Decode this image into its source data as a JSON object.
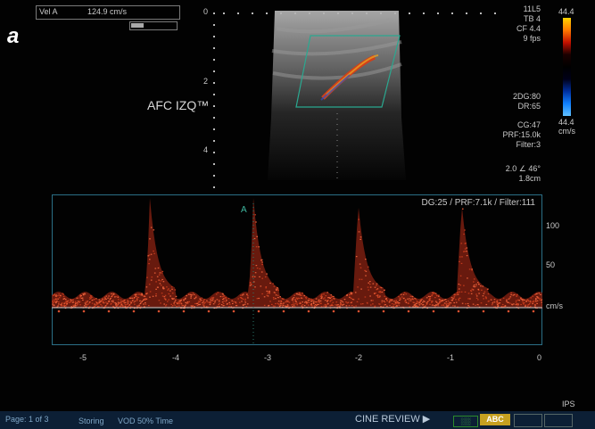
{
  "header": {
    "vel_label": "Vel A",
    "vel_value": "124.9  cm/s",
    "figure_letter": "a",
    "study_label": "AFC IZQ™"
  },
  "depth_scale": {
    "labels": [
      "0",
      "2",
      "4"
    ]
  },
  "params_right": {
    "lines_top": [
      "11L5",
      "TB 4",
      "CF 4.4",
      "9 fps"
    ],
    "colorbar_max": "44.4",
    "colorbar_min": "44.4",
    "colorbar_unit": "cm/s",
    "lines_mid": [
      "2DG:80",
      "DR:65"
    ],
    "lines_low": [
      "CG:47",
      "PRF:15.0k",
      "Filter:3"
    ],
    "angle_lines": [
      "2.0  ∠ 46°",
      "1.8cm"
    ],
    "colorbar_colors": [
      "#ffd400",
      "#ff7a00",
      "#c41000",
      "#1a0000",
      "#000000",
      "#000018",
      "#0030a0",
      "#1080ff",
      "#60c0ff"
    ]
  },
  "doppler": {
    "params": "DG:25 /   PRF:7.1k   / Filter:111",
    "cursor_label": "A",
    "scale_labels": [
      "100",
      "50",
      "cm/s"
    ],
    "time_labels": [
      "-5",
      "-4",
      "-3",
      "-2",
      "-1",
      "0"
    ]
  },
  "footer": {
    "page": "Page: 1 of 3",
    "status": "Storing",
    "mode": "VOD 50% Time",
    "cine_review": "CINE REVIEW ▶",
    "button_green": "░░",
    "button_abc": "ABC",
    "right_label": "IPS"
  }
}
